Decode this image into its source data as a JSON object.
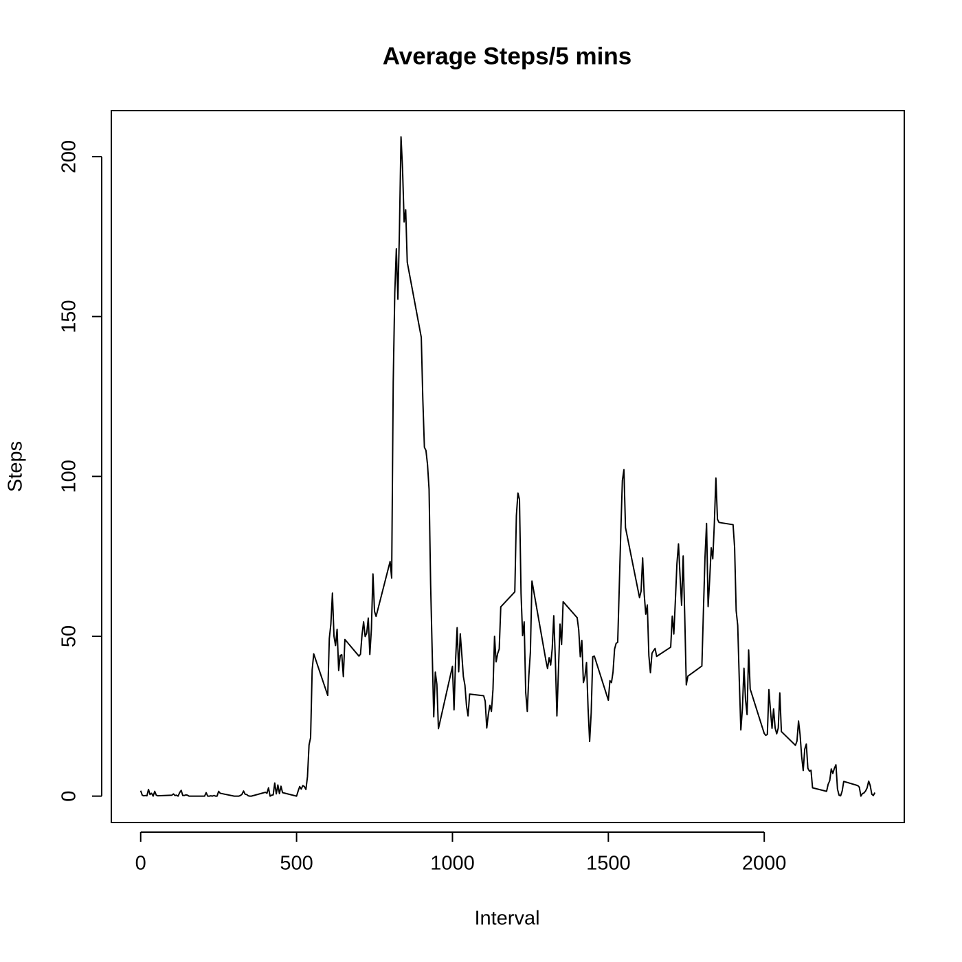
{
  "chart_data": {
    "type": "line",
    "title": "Average Steps/5 mins",
    "x_label": "Interval",
    "y_label": "Steps",
    "color": "#000000",
    "x": [
      0,
      5,
      10,
      15,
      20,
      25,
      30,
      35,
      40,
      45,
      50,
      55,
      100,
      105,
      110,
      115,
      120,
      125,
      130,
      135,
      140,
      145,
      150,
      155,
      200,
      205,
      210,
      215,
      220,
      225,
      230,
      235,
      240,
      245,
      250,
      255,
      300,
      305,
      310,
      315,
      320,
      325,
      330,
      335,
      340,
      345,
      350,
      355,
      400,
      405,
      410,
      415,
      420,
      425,
      430,
      435,
      440,
      445,
      450,
      455,
      500,
      505,
      510,
      515,
      520,
      525,
      530,
      535,
      540,
      545,
      550,
      555,
      600,
      605,
      610,
      615,
      620,
      625,
      630,
      635,
      640,
      645,
      650,
      655,
      700,
      705,
      710,
      715,
      720,
      725,
      730,
      735,
      740,
      745,
      750,
      755,
      800,
      805,
      810,
      815,
      820,
      825,
      830,
      835,
      840,
      845,
      850,
      855,
      900,
      905,
      910,
      915,
      920,
      925,
      930,
      935,
      940,
      945,
      950,
      955,
      1000,
      1005,
      1010,
      1015,
      1020,
      1025,
      1030,
      1035,
      1040,
      1045,
      1050,
      1055,
      1100,
      1105,
      1110,
      1115,
      1120,
      1125,
      1130,
      1135,
      1140,
      1145,
      1150,
      1155,
      1200,
      1205,
      1210,
      1215,
      1220,
      1225,
      1230,
      1235,
      1240,
      1245,
      1250,
      1255,
      1300,
      1305,
      1310,
      1315,
      1320,
      1325,
      1330,
      1335,
      1340,
      1345,
      1350,
      1355,
      1400,
      1405,
      1410,
      1415,
      1420,
      1425,
      1430,
      1435,
      1440,
      1445,
      1450,
      1455,
      1500,
      1505,
      1510,
      1515,
      1520,
      1525,
      1530,
      1535,
      1540,
      1545,
      1550,
      1555,
      1600,
      1605,
      1610,
      1615,
      1620,
      1625,
      1630,
      1635,
      1640,
      1645,
      1650,
      1655,
      1700,
      1705,
      1710,
      1715,
      1720,
      1725,
      1730,
      1735,
      1740,
      1745,
      1750,
      1755,
      1800,
      1805,
      1810,
      1815,
      1820,
      1825,
      1830,
      1835,
      1840,
      1845,
      1850,
      1855,
      1900,
      1905,
      1910,
      1915,
      1920,
      1925,
      1930,
      1935,
      1940,
      1945,
      1950,
      1955,
      2000,
      2005,
      2010,
      2015,
      2020,
      2025,
      2030,
      2035,
      2040,
      2045,
      2050,
      2055,
      2100,
      2105,
      2110,
      2115,
      2120,
      2125,
      2130,
      2135,
      2140,
      2145,
      2150,
      2155,
      2200,
      2205,
      2210,
      2215,
      2220,
      2225,
      2230,
      2235,
      2240,
      2245,
      2250,
      2255,
      2300,
      2305,
      2310,
      2315,
      2320,
      2325,
      2330,
      2335,
      2340,
      2345,
      2350,
      2355
    ],
    "values": [
      1.7,
      0.3,
      0.1,
      0.2,
      0.1,
      2.1,
      0.5,
      0.9,
      0,
      1.5,
      0.3,
      0.1,
      0.3,
      0.7,
      0.2,
      0.3,
      0,
      1.1,
      1.8,
      0.2,
      0.2,
      0.4,
      0.3,
      0,
      0,
      0,
      1.1,
      0,
      0,
      0.1,
      0,
      0.2,
      0,
      0,
      1.5,
      0.9,
      0,
      0,
      0,
      0,
      0.2,
      0.6,
      1.6,
      0.6,
      0.5,
      0.1,
      0,
      0,
      1.2,
      0.9,
      2.6,
      0,
      0.3,
      0.4,
      4.1,
      0.7,
      3.5,
      0.8,
      3.1,
      1.1,
      0,
      1.6,
      3.0,
      2.2,
      3.3,
      3.0,
      2.1,
      6.1,
      16.0,
      18.3,
      39.5,
      44.5,
      31.5,
      49.3,
      53.8,
      63.5,
      50.0,
      47.1,
      52.2,
      39.3,
      44.0,
      44.2,
      37.4,
      49.0,
      43.8,
      44.4,
      50.5,
      54.5,
      49.9,
      51.0,
      55.7,
      44.3,
      52.3,
      69.5,
      57.8,
      56.2,
      73.4,
      68.2,
      129.4,
      157.5,
      171.2,
      155.4,
      177.3,
      206.2,
      195.9,
      179.6,
      183.4,
      167.0,
      143.5,
      124.0,
      109.1,
      108.1,
      103.7,
      96.0,
      66.2,
      45.2,
      24.8,
      38.8,
      35.0,
      21.1,
      40.6,
      27.0,
      42.4,
      52.7,
      38.9,
      50.8,
      44.3,
      37.4,
      34.7,
      28.3,
      25.1,
      31.9,
      31.4,
      29.7,
      21.3,
      25.5,
      28.4,
      26.5,
      33.4,
      50.0,
      42.0,
      44.6,
      46.0,
      59.2,
      63.9,
      87.7,
      94.8,
      92.8,
      63.4,
      50.2,
      54.5,
      32.4,
      26.5,
      37.7,
      45.1,
      67.3,
      42.3,
      39.9,
      43.3,
      41.0,
      46.2,
      56.4,
      42.8,
      25.1,
      39.5,
      53.8,
      47.4,
      60.8,
      55.8,
      52.0,
      43.6,
      48.7,
      35.5,
      37.5,
      41.8,
      27.5,
      17.1,
      26.1,
      43.6,
      43.8,
      30.0,
      36.1,
      35.5,
      38.8,
      46.0,
      47.8,
      48.1,
      65.3,
      82.9,
      98.7,
      102.1,
      84.0,
      62.1,
      64.1,
      74.5,
      63.2,
      56.9,
      59.8,
      43.9,
      38.6,
      44.7,
      45.5,
      46.2,
      43.7,
      46.6,
      56.3,
      50.7,
      61.2,
      72.7,
      78.9,
      68.9,
      59.7,
      75.1,
      56.5,
      34.8,
      37.5,
      40.7,
      58.0,
      74.7,
      85.3,
      59.3,
      67.8,
      77.7,
      74.2,
      85.3,
      99.5,
      86.6,
      85.6,
      84.9,
      77.8,
      58.0,
      53.4,
      36.3,
      20.7,
      27.4,
      40.0,
      30.2,
      25.5,
      45.7,
      33.5,
      19.6,
      19.0,
      19.3,
      33.3,
      26.8,
      21.2,
      27.3,
      21.3,
      19.5,
      21.3,
      32.3,
      20.2,
      15.9,
      17.2,
      23.5,
      19.2,
      12.5,
      8.0,
      14.7,
      16.3,
      8.7,
      7.8,
      8.1,
      2.6,
      1.5,
      3.7,
      4.8,
      8.5,
      7.1,
      8.7,
      9.8,
      2.2,
      0.3,
      0.1,
      1.6,
      4.6,
      3.3,
      2.8,
      0,
      0.8,
      1.0,
      1.6,
      2.6,
      4.7,
      3.3,
      0.6,
      0.2,
      1.1
    ],
    "xlim": [
      -94.2,
      2449.2
    ],
    "ylim": [
      -8.25,
      214.4
    ],
    "xticks": [
      0,
      500,
      1000,
      1500,
      2000
    ],
    "yticks": [
      0,
      50,
      100,
      150,
      200
    ]
  }
}
